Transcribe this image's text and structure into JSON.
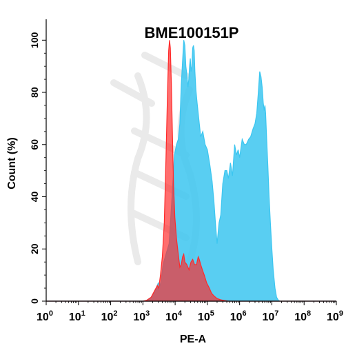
{
  "chart_data": {
    "type": "area",
    "title": "BME100151P",
    "xlabel": "PE-A",
    "ylabel": "Count (%)",
    "x_scale": "log10",
    "xlim": [
      1,
      1000000000
    ],
    "ylim": [
      0,
      108
    ],
    "x_ticks": [
      {
        "base": "10",
        "exp": "0"
      },
      {
        "base": "10",
        "exp": "1"
      },
      {
        "base": "10",
        "exp": "2"
      },
      {
        "base": "10",
        "exp": "3"
      },
      {
        "base": "10",
        "exp": "4"
      },
      {
        "base": "10",
        "exp": "5"
      },
      {
        "base": "10",
        "exp": "6"
      },
      {
        "base": "10",
        "exp": "7"
      },
      {
        "base": "10",
        "exp": "8"
      },
      {
        "base": "10",
        "exp": "9"
      }
    ],
    "y_ticks": [
      "0",
      "20",
      "40",
      "60",
      "80",
      "100"
    ],
    "y_tick_values": [
      0,
      20,
      40,
      60,
      80,
      100
    ],
    "colors": {
      "red": "#ff2a2a",
      "blue": "#3cc6f0",
      "axis": "#000000",
      "baseline_dash": "#ff5555"
    },
    "series": [
      {
        "color": "#3cc6f0",
        "points": [
          [
            1,
            0
          ],
          [
            1000,
            0
          ],
          [
            1300,
            0.3
          ],
          [
            1800,
            1.5
          ],
          [
            2400,
            4
          ],
          [
            3000,
            7
          ],
          [
            3400,
            6
          ],
          [
            3700,
            8
          ],
          [
            4200,
            14
          ],
          [
            5200,
            18
          ],
          [
            6500,
            22
          ],
          [
            8000,
            40
          ],
          [
            9500,
            56
          ],
          [
            11000,
            60
          ],
          [
            12500,
            62
          ],
          [
            14000,
            68
          ],
          [
            15500,
            83
          ],
          [
            17000,
            92
          ],
          [
            18500,
            100
          ],
          [
            20000,
            98
          ],
          [
            21500,
            90
          ],
          [
            23000,
            87
          ],
          [
            25000,
            82
          ],
          [
            26500,
            85
          ],
          [
            28000,
            90
          ],
          [
            29500,
            93
          ],
          [
            31000,
            88
          ],
          [
            33000,
            90
          ],
          [
            35000,
            97
          ],
          [
            37000,
            98
          ],
          [
            39000,
            96
          ],
          [
            41000,
            88
          ],
          [
            44000,
            81
          ],
          [
            48000,
            76
          ],
          [
            54000,
            70
          ],
          [
            62000,
            63
          ],
          [
            72000,
            65
          ],
          [
            85000,
            60
          ],
          [
            100000,
            58
          ],
          [
            120000,
            52
          ],
          [
            140000,
            46
          ],
          [
            160000,
            38
          ],
          [
            180000,
            29
          ],
          [
            200000,
            22
          ],
          [
            230000,
            30
          ],
          [
            260000,
            33
          ],
          [
            300000,
            45
          ],
          [
            350000,
            50
          ],
          [
            400000,
            50
          ],
          [
            450000,
            47
          ],
          [
            520000,
            53
          ],
          [
            600000,
            48
          ],
          [
            700000,
            60
          ],
          [
            800000,
            56
          ],
          [
            900000,
            58
          ],
          [
            1000000,
            55
          ],
          [
            1200000,
            62
          ],
          [
            1400000,
            60
          ],
          [
            1600000,
            60
          ],
          [
            1900000,
            62
          ],
          [
            2200000,
            63
          ],
          [
            2600000,
            66
          ],
          [
            3000000,
            68
          ],
          [
            3400000,
            72
          ],
          [
            3800000,
            80
          ],
          [
            4200000,
            88
          ],
          [
            4600000,
            86
          ],
          [
            5000000,
            82
          ],
          [
            5400000,
            76
          ],
          [
            5800000,
            73
          ],
          [
            6100000,
            75
          ],
          [
            6400000,
            72
          ],
          [
            6900000,
            62
          ],
          [
            7500000,
            52
          ],
          [
            8200000,
            40
          ],
          [
            9000000,
            30
          ],
          [
            10000000,
            20
          ],
          [
            11000000,
            12
          ],
          [
            12500000,
            5
          ],
          [
            14000000,
            1.5
          ],
          [
            16000000,
            0.3
          ],
          [
            18000000,
            0
          ],
          [
            1000000000,
            0
          ]
        ]
      },
      {
        "color": "#ff2a2a",
        "points": [
          [
            1,
            0
          ],
          [
            1000,
            0
          ],
          [
            1300,
            0.3
          ],
          [
            1800,
            1.5
          ],
          [
            2300,
            4
          ],
          [
            2800,
            6
          ],
          [
            3100,
            5
          ],
          [
            3500,
            10
          ],
          [
            4000,
            17
          ],
          [
            4600,
            30
          ],
          [
            5200,
            55
          ],
          [
            5800,
            80
          ],
          [
            6300,
            96
          ],
          [
            6700,
            100
          ],
          [
            7100,
            97
          ],
          [
            7600,
            84
          ],
          [
            8200,
            65
          ],
          [
            8900,
            45
          ],
          [
            9800,
            32
          ],
          [
            11000,
            24
          ],
          [
            12500,
            18
          ],
          [
            14000,
            13
          ],
          [
            15500,
            14
          ],
          [
            17000,
            17
          ],
          [
            18500,
            18
          ],
          [
            20000,
            15
          ],
          [
            23000,
            14
          ],
          [
            27000,
            12
          ],
          [
            31000,
            15
          ],
          [
            35000,
            16
          ],
          [
            40000,
            14
          ],
          [
            46000,
            14
          ],
          [
            52000,
            17
          ],
          [
            56000,
            16
          ],
          [
            62000,
            14
          ],
          [
            70000,
            12
          ],
          [
            80000,
            10
          ],
          [
            95000,
            7
          ],
          [
            115000,
            5
          ],
          [
            135000,
            3
          ],
          [
            160000,
            2
          ],
          [
            200000,
            1
          ],
          [
            260000,
            0.5
          ],
          [
            350000,
            0.2
          ],
          [
            450000,
            0
          ],
          [
            1000000000,
            0
          ]
        ]
      }
    ]
  }
}
